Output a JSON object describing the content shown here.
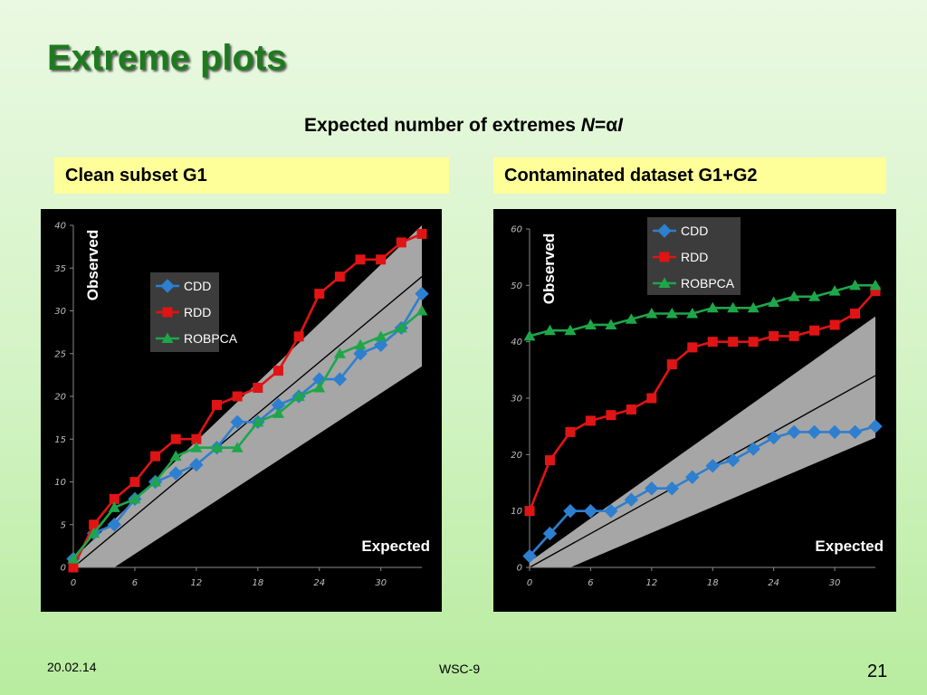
{
  "slide": {
    "title": "Extreme plots",
    "subtitle_plain": "Expected number of extremes ",
    "subtitle_italic1": "N",
    "subtitle_eq": "=",
    "subtitle_alpha": "α",
    "subtitle_italic2": "I",
    "date": "20.02.14",
    "footer_center": "WSC-9",
    "page_number": "21"
  },
  "panels": [
    {
      "heading": "Clean subset G1"
    },
    {
      "heading": "Contaminated dataset G1+G2"
    }
  ],
  "colors": {
    "CDD": "#2e7fcf",
    "RDD": "#e01414",
    "ROBPCA": "#1ea64a",
    "band": "#a6a6a6",
    "background": "#000000",
    "legend_bg": "#3c3c3c"
  },
  "chart_data": [
    {
      "type": "line",
      "xlabel": "Expected",
      "ylabel": "Observed",
      "xlim": [
        0,
        34
      ],
      "ylim": [
        0,
        40
      ],
      "xticks": [
        0,
        6,
        12,
        18,
        24,
        30
      ],
      "yticks": [
        0,
        5,
        10,
        15,
        20,
        25,
        30,
        35,
        40
      ],
      "x": [
        0,
        2,
        4,
        6,
        8,
        10,
        12,
        14,
        16,
        18,
        20,
        22,
        24,
        26,
        28,
        30,
        32,
        34
      ],
      "reference_line": [
        [
          0,
          0
        ],
        [
          34,
          34
        ]
      ],
      "band_upper": [
        [
          0,
          1
        ],
        [
          34,
          40
        ]
      ],
      "band_lower": [
        [
          4,
          0
        ],
        [
          34,
          23.5
        ]
      ],
      "legend_position": "upper-left",
      "series": [
        {
          "name": "CDD",
          "values": [
            1,
            4,
            5,
            8,
            10,
            11,
            12,
            14,
            17,
            17,
            19,
            20,
            22,
            22,
            25,
            26,
            28,
            32
          ]
        },
        {
          "name": "RDD",
          "values": [
            0,
            5,
            8,
            10,
            13,
            15,
            15,
            19,
            20,
            21,
            23,
            27,
            32,
            34,
            36,
            36,
            38,
            39
          ]
        },
        {
          "name": "ROBPCA",
          "values": [
            1,
            4,
            7,
            8,
            10,
            13,
            14,
            14,
            14,
            17,
            18,
            20,
            21,
            25,
            26,
            27,
            28,
            30
          ]
        }
      ]
    },
    {
      "type": "line",
      "xlabel": "Expected",
      "ylabel": "Observed",
      "xlim": [
        0,
        34
      ],
      "ylim": [
        0,
        60
      ],
      "xticks": [
        0,
        6,
        12,
        18,
        24,
        30
      ],
      "yticks": [
        0,
        10,
        20,
        30,
        40,
        50,
        60
      ],
      "x": [
        0,
        2,
        4,
        6,
        8,
        10,
        12,
        14,
        16,
        18,
        20,
        22,
        24,
        26,
        28,
        30,
        32,
        34
      ],
      "reference_line": [
        [
          0,
          0
        ],
        [
          34,
          34
        ]
      ],
      "band_upper": [
        [
          0,
          1
        ],
        [
          34,
          44.5
        ]
      ],
      "band_lower": [
        [
          4,
          0
        ],
        [
          34,
          23
        ]
      ],
      "legend_position": "upper-left",
      "series": [
        {
          "name": "CDD",
          "values": [
            2,
            6,
            10,
            10,
            10,
            12,
            14,
            14,
            16,
            18,
            19,
            21,
            23,
            24,
            24,
            24,
            24,
            25
          ]
        },
        {
          "name": "RDD",
          "values": [
            10,
            19,
            24,
            26,
            27,
            28,
            30,
            36,
            39,
            40,
            40,
            40,
            41,
            41,
            42,
            43,
            45,
            49
          ]
        },
        {
          "name": "ROBPCA",
          "values": [
            41,
            42,
            42,
            43,
            43,
            44,
            45,
            45,
            45,
            46,
            46,
            46,
            47,
            48,
            48,
            49,
            50,
            50
          ]
        }
      ]
    }
  ]
}
